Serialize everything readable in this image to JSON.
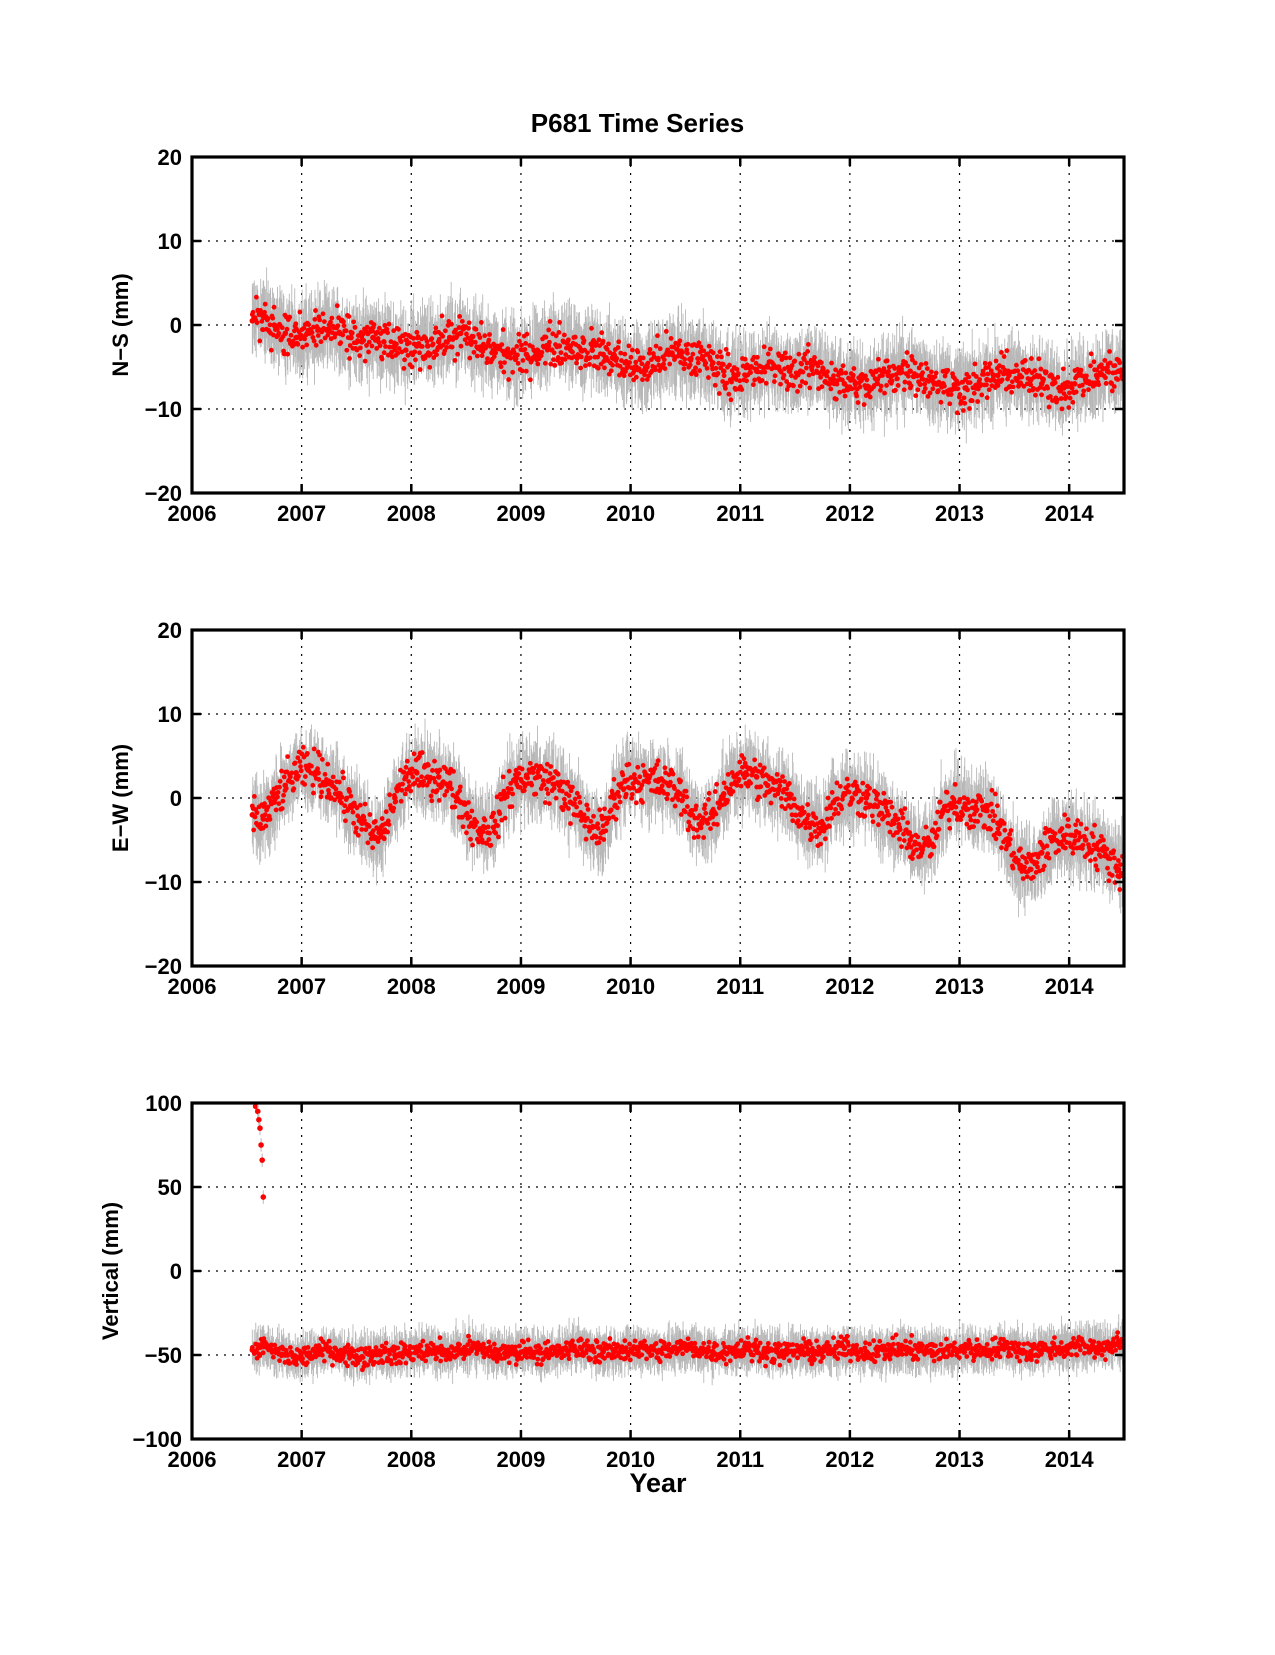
{
  "title": "P681 Time Series",
  "xlabel": "Year",
  "colors": {
    "marker": "#ff0000",
    "errorbar": "#b8b8b8",
    "axis": "#000000",
    "grid": "#000000"
  },
  "chart_data": [
    {
      "type": "scatter",
      "ylabel": "N−S (mm)",
      "xlim": [
        2006,
        2014.5
      ],
      "ylim": [
        -20,
        20
      ],
      "xticks": [
        2006,
        2007,
        2008,
        2009,
        2010,
        2011,
        2012,
        2013,
        2014
      ],
      "yticks": [
        -20,
        -10,
        0,
        10,
        20
      ],
      "ytick_labels": [
        "−20",
        "−10",
        "0",
        "10",
        "20"
      ],
      "grid": true,
      "error_bars": true,
      "series": [
        {
          "x": [
            2006.55,
            2006.65,
            2006.75,
            2006.85,
            2006.95,
            2007.05,
            2007.15,
            2007.25,
            2007.35,
            2007.45,
            2007.55,
            2007.65,
            2007.75,
            2007.85,
            2007.95,
            2008.05,
            2008.15,
            2008.25,
            2008.35,
            2008.45,
            2008.55,
            2008.65,
            2008.75,
            2008.85,
            2008.95,
            2009.05,
            2009.15,
            2009.25,
            2009.35,
            2009.45,
            2009.55,
            2009.65,
            2009.75,
            2009.85,
            2009.95,
            2010.05,
            2010.15,
            2010.25,
            2010.35,
            2010.45,
            2010.55,
            2010.65,
            2010.75,
            2010.85,
            2010.95,
            2011.05,
            2011.15,
            2011.25,
            2011.35,
            2011.45,
            2011.55,
            2011.65,
            2011.75,
            2011.85,
            2011.95,
            2012.05,
            2012.15,
            2012.25,
            2012.35,
            2012.45,
            2012.55,
            2012.65,
            2012.75,
            2012.85,
            2012.95,
            2013.05,
            2013.15,
            2013.25,
            2013.35,
            2013.45,
            2013.55,
            2013.65,
            2013.75,
            2013.85,
            2013.95,
            2014.05,
            2014.15,
            2014.25,
            2014.35,
            2014.45
          ],
          "y": [
            0.5,
            1.0,
            0.0,
            -1.0,
            -1.5,
            -1.0,
            -0.5,
            -0.5,
            -1.0,
            -1.5,
            -2.0,
            -1.5,
            -2.0,
            -2.5,
            -3.0,
            -2.5,
            -2.5,
            -2.0,
            -1.5,
            -1.0,
            -2.0,
            -2.5,
            -3.0,
            -3.5,
            -4.0,
            -3.5,
            -3.0,
            -2.5,
            -2.5,
            -2.5,
            -3.0,
            -3.0,
            -3.5,
            -4.0,
            -4.5,
            -5.0,
            -5.0,
            -4.0,
            -3.5,
            -3.5,
            -4.0,
            -4.0,
            -4.5,
            -5.5,
            -6.0,
            -6.0,
            -5.5,
            -5.0,
            -5.0,
            -5.5,
            -5.5,
            -5.0,
            -5.5,
            -6.5,
            -7.0,
            -7.0,
            -7.5,
            -6.5,
            -6.0,
            -5.5,
            -5.5,
            -6.0,
            -6.5,
            -7.0,
            -7.5,
            -7.5,
            -7.5,
            -6.5,
            -6.0,
            -6.0,
            -6.0,
            -6.5,
            -7.0,
            -7.0,
            -7.5,
            -7.0,
            -6.5,
            -6.0,
            -5.5,
            -5.5
          ]
        }
      ]
    },
    {
      "type": "scatter",
      "ylabel": "E−W (mm)",
      "xlim": [
        2006,
        2014.5
      ],
      "ylim": [
        -20,
        20
      ],
      "xticks": [
        2006,
        2007,
        2008,
        2009,
        2010,
        2011,
        2012,
        2013,
        2014
      ],
      "yticks": [
        -20,
        -10,
        0,
        10,
        20
      ],
      "ytick_labels": [
        "−20",
        "−10",
        "0",
        "10",
        "20"
      ],
      "grid": true,
      "error_bars": true,
      "series": [
        {
          "x": [
            2006.55,
            2006.65,
            2006.75,
            2006.85,
            2006.95,
            2007.05,
            2007.15,
            2007.25,
            2007.35,
            2007.45,
            2007.55,
            2007.65,
            2007.75,
            2007.85,
            2007.95,
            2008.05,
            2008.15,
            2008.25,
            2008.35,
            2008.45,
            2008.55,
            2008.65,
            2008.75,
            2008.85,
            2008.95,
            2009.05,
            2009.15,
            2009.25,
            2009.35,
            2009.45,
            2009.55,
            2009.65,
            2009.75,
            2009.85,
            2009.95,
            2010.05,
            2010.15,
            2010.25,
            2010.35,
            2010.45,
            2010.55,
            2010.65,
            2010.75,
            2010.85,
            2010.95,
            2011.05,
            2011.15,
            2011.25,
            2011.35,
            2011.45,
            2011.55,
            2011.65,
            2011.75,
            2011.85,
            2011.95,
            2012.05,
            2012.15,
            2012.25,
            2012.35,
            2012.45,
            2012.55,
            2012.65,
            2012.75,
            2012.85,
            2012.95,
            2013.05,
            2013.15,
            2013.25,
            2013.35,
            2013.45,
            2013.55,
            2013.65,
            2013.75,
            2013.85,
            2013.95,
            2014.05,
            2014.15,
            2014.25,
            2014.35,
            2014.45
          ],
          "y": [
            -2.0,
            -2.5,
            -0.5,
            1.5,
            3.0,
            3.5,
            3.0,
            2.0,
            0.5,
            -1.0,
            -3.0,
            -4.5,
            -4.0,
            0.0,
            2.5,
            3.0,
            2.5,
            2.5,
            1.5,
            -0.5,
            -3.0,
            -4.0,
            -3.5,
            0.0,
            2.0,
            2.5,
            2.5,
            2.0,
            1.5,
            -0.5,
            -2.0,
            -3.5,
            -4.0,
            0.0,
            2.0,
            2.0,
            2.0,
            2.0,
            1.5,
            0.5,
            -2.0,
            -3.0,
            -2.0,
            0.5,
            2.5,
            3.0,
            2.5,
            1.5,
            1.0,
            0.0,
            -2.0,
            -3.0,
            -3.5,
            -0.5,
            0.5,
            0.5,
            0.0,
            -1.0,
            -2.0,
            -3.5,
            -5.0,
            -6.0,
            -5.5,
            -1.5,
            -0.5,
            -1.0,
            -1.5,
            -1.5,
            -3.0,
            -5.5,
            -8.0,
            -8.5,
            -6.5,
            -5.0,
            -4.5,
            -4.5,
            -5.0,
            -6.0,
            -7.0,
            -8.5
          ]
        }
      ]
    },
    {
      "type": "scatter",
      "ylabel": "Vertical (mm)",
      "xlim": [
        2006,
        2014.5
      ],
      "ylim": [
        -100,
        100
      ],
      "xticks": [
        2006,
        2007,
        2008,
        2009,
        2010,
        2011,
        2012,
        2013,
        2014
      ],
      "yticks": [
        -100,
        -50,
        0,
        50,
        100
      ],
      "ytick_labels": [
        "−100",
        "−50",
        "0",
        "50",
        "100"
      ],
      "grid": true,
      "error_bars": true,
      "series": [
        {
          "x": [
            2006.55,
            2006.65,
            2006.75,
            2006.85,
            2006.95,
            2007.05,
            2007.15,
            2007.25,
            2007.35,
            2007.45,
            2007.55,
            2007.65,
            2007.75,
            2007.85,
            2007.95,
            2008.05,
            2008.15,
            2008.25,
            2008.35,
            2008.45,
            2008.55,
            2008.65,
            2008.75,
            2008.85,
            2008.95,
            2009.05,
            2009.15,
            2009.25,
            2009.35,
            2009.45,
            2009.55,
            2009.65,
            2009.75,
            2009.85,
            2009.95,
            2010.05,
            2010.15,
            2010.25,
            2010.35,
            2010.45,
            2010.55,
            2010.65,
            2010.75,
            2010.85,
            2010.95,
            2011.05,
            2011.15,
            2011.25,
            2011.35,
            2011.45,
            2011.55,
            2011.65,
            2011.75,
            2011.85,
            2011.95,
            2012.05,
            2012.15,
            2012.25,
            2012.35,
            2012.45,
            2012.55,
            2012.65,
            2012.75,
            2012.85,
            2012.95,
            2013.05,
            2013.15,
            2013.25,
            2013.35,
            2013.45,
            2013.55,
            2013.65,
            2013.75,
            2013.85,
            2013.95,
            2014.05,
            2014.15,
            2014.25,
            2014.35,
            2014.45
          ],
          "y": [
            -47,
            -45,
            -48,
            -50,
            -52,
            -50,
            -48,
            -47,
            -49,
            -50,
            -51,
            -50,
            -48,
            -50,
            -49,
            -48,
            -47,
            -48,
            -49,
            -47,
            -46,
            -47,
            -48,
            -49,
            -48,
            -47,
            -48,
            -49,
            -48,
            -47,
            -46,
            -47,
            -48,
            -48,
            -47,
            -46,
            -47,
            -48,
            -47,
            -46,
            -45,
            -47,
            -48,
            -48,
            -47,
            -46,
            -47,
            -48,
            -49,
            -48,
            -47,
            -48,
            -48,
            -47,
            -46,
            -47,
            -48,
            -48,
            -47,
            -46,
            -47,
            -47,
            -48,
            -48,
            -47,
            -46,
            -47,
            -47,
            -46,
            -46,
            -47,
            -48,
            -47,
            -46,
            -46,
            -45,
            -45,
            -46,
            -45,
            -44
          ]
        }
      ],
      "outliers": {
        "x": [
          2006.58,
          2006.6,
          2006.61,
          2006.62,
          2006.63,
          2006.64,
          2006.65
        ],
        "y": [
          98,
          95,
          90,
          85,
          75,
          66,
          44
        ]
      }
    }
  ]
}
